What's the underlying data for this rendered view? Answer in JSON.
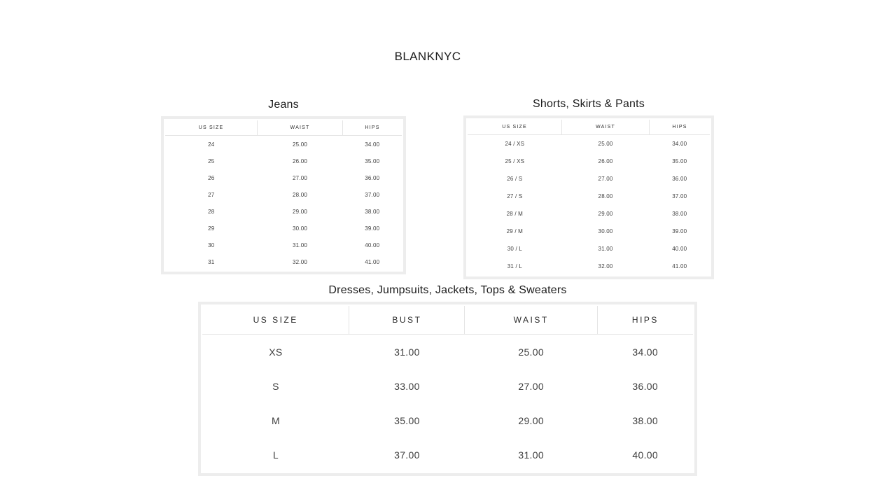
{
  "page": {
    "brand": "BLANKNYC"
  },
  "colors": {
    "background": "#ffffff",
    "table_frame": "#ededed",
    "header_divider": "#e4e4e4",
    "title_text": "#1c1c1c",
    "cell_text": "#3e3e3e"
  },
  "tables": [
    {
      "id": "jeans",
      "title": "Jeans",
      "columns": [
        "US SIZE",
        "WAIST",
        "HIPS"
      ],
      "rows": [
        [
          "24",
          "25.00",
          "34.00"
        ],
        [
          "25",
          "26.00",
          "35.00"
        ],
        [
          "26",
          "27.00",
          "36.00"
        ],
        [
          "27",
          "28.00",
          "37.00"
        ],
        [
          "28",
          "29.00",
          "38.00"
        ],
        [
          "29",
          "30.00",
          "39.00"
        ],
        [
          "30",
          "31.00",
          "40.00"
        ],
        [
          "31",
          "32.00",
          "41.00"
        ]
      ]
    },
    {
      "id": "shorts-skirts-pants",
      "title": "Shorts, Skirts & Pants",
      "columns": [
        "US SIZE",
        "WAIST",
        "HIPS"
      ],
      "rows": [
        [
          "24 / XS",
          "25.00",
          "34.00"
        ],
        [
          "25 / XS",
          "26.00",
          "35.00"
        ],
        [
          "26 / S",
          "27.00",
          "36.00"
        ],
        [
          "27 / S",
          "28.00",
          "37.00"
        ],
        [
          "28 / M",
          "29.00",
          "38.00"
        ],
        [
          "29 / M",
          "30.00",
          "39.00"
        ],
        [
          "30 / L",
          "31.00",
          "40.00"
        ],
        [
          "31 / L",
          "32.00",
          "41.00"
        ]
      ]
    },
    {
      "id": "dresses-jumpsuits-jackets-tops-sweaters",
      "title": "Dresses, Jumpsuits, Jackets, Tops & Sweaters",
      "columns": [
        "US SIZE",
        "BUST",
        "WAIST",
        "HIPS"
      ],
      "rows": [
        [
          "XS",
          "31.00",
          "25.00",
          "34.00"
        ],
        [
          "S",
          "33.00",
          "27.00",
          "36.00"
        ],
        [
          "M",
          "35.00",
          "29.00",
          "38.00"
        ],
        [
          "L",
          "37.00",
          "31.00",
          "40.00"
        ]
      ]
    }
  ]
}
